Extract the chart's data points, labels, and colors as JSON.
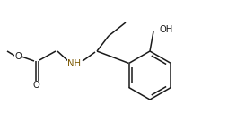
{
  "bg_color": "#ffffff",
  "line_color": "#1a1a1a",
  "nh_color": "#7B5800",
  "bond_lw": 1.1,
  "label_fontsize": 7.2,
  "fig_width": 2.54,
  "fig_height": 1.46,
  "dpi": 100,
  "labels": {
    "methoxy_O": {
      "text": "O",
      "color": "#1a1a1a"
    },
    "carbonyl_O": {
      "text": "O",
      "color": "#1a1a1a"
    },
    "nh": {
      "text": "NH",
      "color": "#7B5800"
    },
    "oh": {
      "text": "OH",
      "color": "#1a1a1a"
    }
  }
}
